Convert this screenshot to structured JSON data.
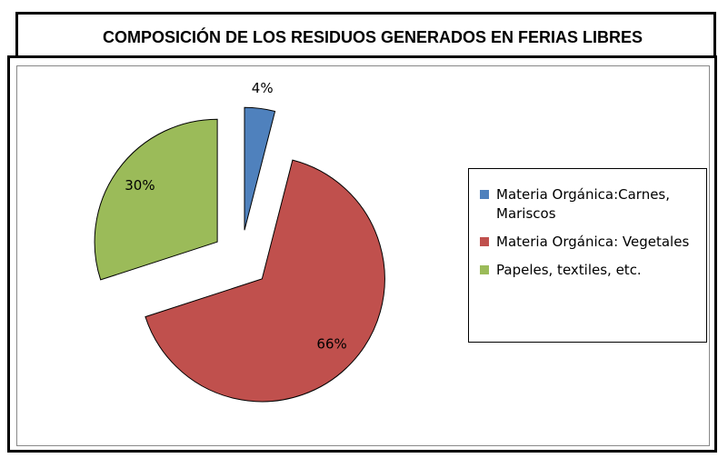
{
  "chart_data": {
    "type": "pie",
    "title": "COMPOSICIÓN DE LOS RESIDUOS GENERADOS EN FERIAS LIBRES",
    "categories": [
      "Materia Orgánica:Carnes, Mariscos",
      "Materia Orgánica: Vegetales",
      "Papeles, textiles, etc."
    ],
    "values": [
      4,
      66,
      30
    ],
    "value_labels": [
      "4%",
      "66%",
      "30%"
    ],
    "colors": [
      "#4f81bd",
      "#c0504d",
      "#9bbb59"
    ],
    "legend": "right"
  }
}
